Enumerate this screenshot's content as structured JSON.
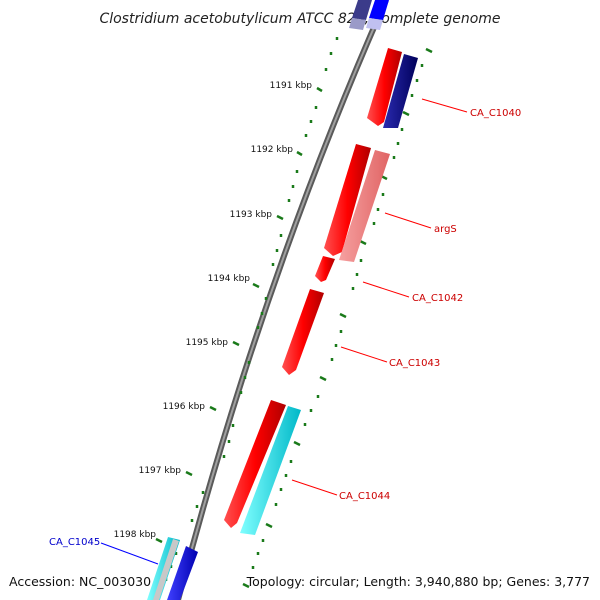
{
  "title": "Clostridium acetobutylicum ATCC 824, complete genome",
  "footer": {
    "accession": "Accession: NC_003030",
    "topology": "Topology: circular; Length: 3,940,880 bp; Genes: 3,777"
  },
  "scale_labels": [
    "1191 kbp",
    "1192 kbp",
    "1193 kbp",
    "1194 kbp",
    "1195 kbp",
    "1196 kbp",
    "1197 kbp",
    "1198 kbp"
  ],
  "gene_labels": {
    "ca_c1040": "CA_C1040",
    "args": "argS",
    "ca_c1042": "CA_C1042",
    "ca_c1043": "CA_C1043",
    "ca_c1044": "CA_C1044",
    "ca_c1045": "CA_C1045"
  },
  "colors": {
    "forward_gene": "#ff0000",
    "forward_gene_light": "#f08080",
    "navy_gene": "#000080",
    "blue_gene": "#0000ff",
    "cyan_gene": "#00ffff",
    "backbone": "#808080",
    "ticks": "#1a7a1a",
    "label_red": "#cc0000",
    "label_blue": "#0000cc"
  }
}
